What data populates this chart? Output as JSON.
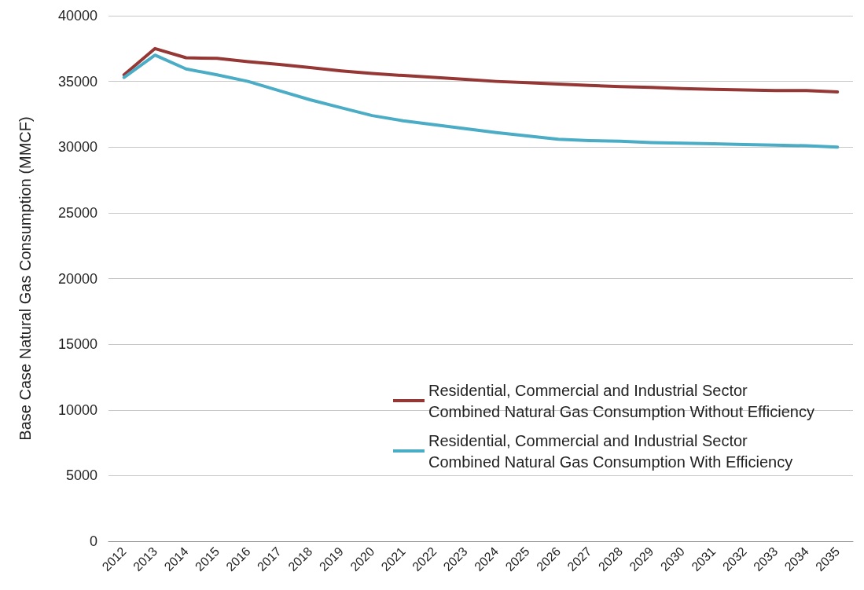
{
  "chart_data": {
    "type": "line",
    "ylabel": "Base Case Natural Gas Consumption (MMCF)",
    "categories": [
      "2012",
      "2013",
      "2014",
      "2015",
      "2016",
      "2017",
      "2018",
      "2019",
      "2020",
      "2021",
      "2022",
      "2023",
      "2024",
      "2025",
      "2026",
      "2027",
      "2028",
      "2029",
      "2030",
      "2031",
      "2032",
      "2033",
      "2034",
      "2035"
    ],
    "series": [
      {
        "name": "Residential, Commercial and Industrial Sector Combined Natural Gas Consumption Without Efficiency",
        "color": "#953735",
        "values": [
          35500,
          37500,
          36800,
          36750,
          36500,
          36300,
          36050,
          35800,
          35600,
          35450,
          35300,
          35150,
          35000,
          34900,
          34800,
          34700,
          34600,
          34550,
          34450,
          34400,
          34350,
          34300,
          34300,
          34200
        ]
      },
      {
        "name": "Residential, Commercial and Industrial Sector Combined Natural Gas Consumption With Efficiency",
        "color": "#4bacc6",
        "values": [
          35300,
          37000,
          35950,
          35500,
          35000,
          34300,
          33600,
          33000,
          32400,
          32000,
          31700,
          31400,
          31100,
          30850,
          30600,
          30500,
          30450,
          30350,
          30300,
          30250,
          30200,
          30150,
          30100,
          30000
        ]
      }
    ],
    "ylim": [
      0,
      40000
    ],
    "yticks": [
      0,
      5000,
      10000,
      15000,
      20000,
      25000,
      30000,
      35000,
      40000
    ],
    "grid": "y",
    "legend": "bottom right",
    "marker": "none",
    "line_style": "solid"
  }
}
